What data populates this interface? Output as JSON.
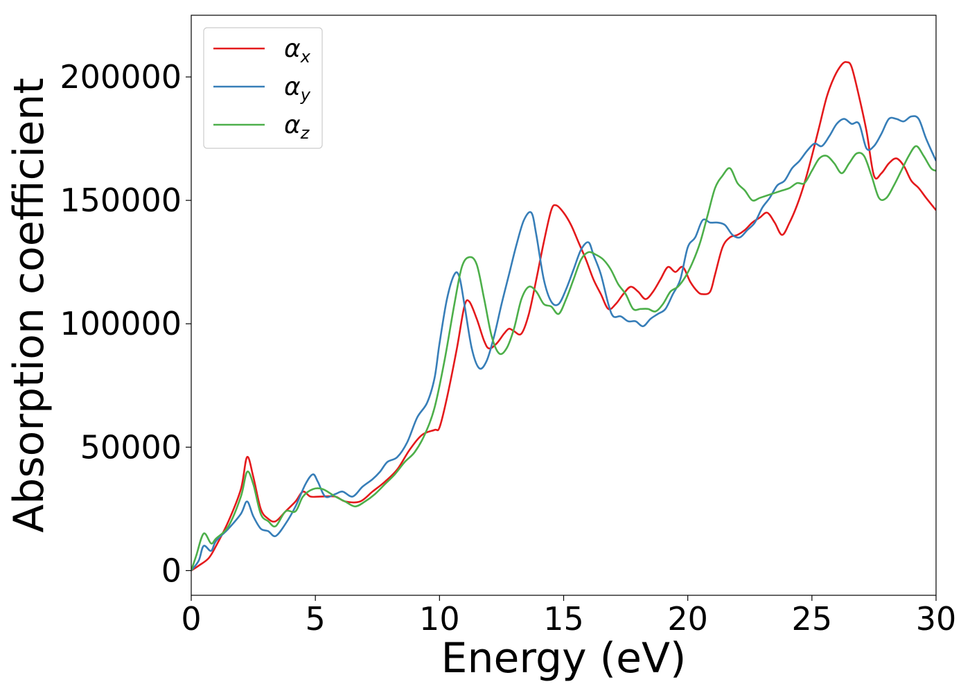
{
  "chart_data": {
    "type": "line",
    "title": "",
    "xlabel": "Energy (eV)",
    "ylabel": "Absorption coefficient",
    "xlim": [
      0,
      30
    ],
    "ylim": [
      -10000,
      225000
    ],
    "xticks": [
      0,
      5,
      10,
      15,
      20,
      25,
      30
    ],
    "xtick_labels": [
      "0",
      "5",
      "10",
      "15",
      "20",
      "25",
      "30"
    ],
    "yticks": [
      0,
      50000,
      100000,
      150000,
      200000
    ],
    "ytick_labels": [
      "0",
      "50000",
      "100000",
      "150000",
      "200000"
    ],
    "grid": false,
    "legend_position": "top-left",
    "series": [
      {
        "name": "α",
        "subscript": "x",
        "color": "#e41a1c",
        "x": [
          0,
          0.3,
          0.7,
          1.0,
          1.5,
          2.0,
          2.25,
          2.5,
          2.8,
          3.1,
          3.4,
          3.8,
          4.2,
          4.5,
          4.8,
          5.2,
          5.8,
          6.2,
          6.8,
          7.3,
          7.8,
          8.3,
          8.8,
          9.3,
          9.8,
          10.0,
          10.3,
          10.7,
          11.0,
          11.2,
          11.5,
          11.8,
          12.0,
          12.3,
          12.6,
          12.8,
          13.0,
          13.3,
          13.6,
          13.9,
          14.2,
          14.5,
          14.7,
          15.0,
          15.3,
          15.6,
          15.9,
          16.2,
          16.5,
          16.8,
          17.1,
          17.4,
          17.7,
          18.0,
          18.3,
          18.6,
          18.9,
          19.2,
          19.5,
          19.8,
          20.1,
          20.4,
          20.6,
          20.9,
          21.1,
          21.4,
          21.7,
          22.0,
          22.3,
          22.6,
          22.9,
          23.2,
          23.5,
          23.8,
          24.1,
          24.4,
          24.7,
          25.0,
          25.3,
          25.6,
          25.9,
          26.2,
          26.4,
          26.6,
          26.9,
          27.2,
          27.5,
          27.8,
          28.1,
          28.4,
          28.7,
          29.0,
          29.3,
          29.6,
          30.0
        ],
        "values": [
          0,
          2000,
          5000,
          10000,
          20000,
          33000,
          46000,
          38000,
          25000,
          21000,
          20000,
          24000,
          28000,
          32000,
          30000,
          30000,
          30000,
          28000,
          28000,
          32000,
          36000,
          41000,
          49000,
          55000,
          57000,
          58000,
          70000,
          90000,
          107000,
          109000,
          102000,
          93000,
          90000,
          92000,
          96000,
          98000,
          97000,
          96000,
          104000,
          118000,
          133000,
          146000,
          148000,
          145000,
          140000,
          133000,
          126000,
          118000,
          112000,
          106000,
          108000,
          112000,
          115000,
          113000,
          110000,
          113000,
          118000,
          123000,
          121000,
          123000,
          117000,
          113000,
          112000,
          113000,
          120000,
          131000,
          135000,
          136000,
          138000,
          141000,
          143000,
          145000,
          141000,
          136000,
          141000,
          148000,
          157000,
          168000,
          180000,
          192000,
          200000,
          205000,
          206000,
          204000,
          192000,
          178000,
          160000,
          161000,
          165000,
          167000,
          164000,
          158000,
          155000,
          151000,
          146000
        ]
      },
      {
        "name": "α",
        "subscript": "y",
        "color": "#377eb8",
        "x": [
          0,
          0.3,
          0.5,
          0.8,
          1.0,
          1.5,
          2.0,
          2.25,
          2.5,
          2.8,
          3.1,
          3.4,
          3.8,
          4.2,
          4.6,
          4.9,
          5.1,
          5.4,
          5.8,
          6.1,
          6.5,
          6.9,
          7.3,
          7.6,
          7.9,
          8.3,
          8.7,
          9.1,
          9.5,
          9.8,
          10.0,
          10.3,
          10.6,
          10.8,
          11.0,
          11.3,
          11.6,
          11.9,
          12.2,
          12.5,
          12.8,
          13.1,
          13.4,
          13.7,
          13.9,
          14.2,
          14.5,
          14.8,
          15.1,
          15.4,
          15.7,
          16.0,
          16.2,
          16.5,
          16.8,
          17.0,
          17.3,
          17.6,
          17.9,
          18.2,
          18.5,
          18.8,
          19.1,
          19.4,
          19.7,
          20.0,
          20.3,
          20.6,
          20.9,
          21.2,
          21.5,
          21.8,
          22.1,
          22.4,
          22.7,
          23.0,
          23.3,
          23.6,
          23.9,
          24.2,
          24.5,
          24.8,
          25.1,
          25.4,
          25.7,
          26.0,
          26.3,
          26.6,
          26.9,
          27.2,
          27.5,
          27.8,
          28.1,
          28.4,
          28.7,
          29.0,
          29.3,
          29.6,
          30.0
        ],
        "values": [
          0,
          4000,
          10000,
          8000,
          12000,
          17000,
          23000,
          28000,
          22000,
          17000,
          16000,
          14000,
          19000,
          26000,
          35000,
          39000,
          36000,
          30000,
          31000,
          32000,
          30000,
          34000,
          37000,
          40000,
          44000,
          46000,
          52000,
          62000,
          68000,
          78000,
          92000,
          110000,
          120000,
          119000,
          108000,
          90000,
          82000,
          85000,
          95000,
          108000,
          120000,
          132000,
          142000,
          145000,
          136000,
          118000,
          109000,
          108000,
          114000,
          122000,
          130000,
          133000,
          128000,
          120000,
          108000,
          103000,
          103000,
          101000,
          101000,
          99000,
          102000,
          104000,
          106000,
          112000,
          118000,
          131000,
          135000,
          142000,
          141000,
          141000,
          140000,
          136000,
          135000,
          138000,
          141000,
          147000,
          151000,
          156000,
          158000,
          163000,
          166000,
          170000,
          173000,
          172000,
          176000,
          181000,
          183000,
          181000,
          181000,
          171000,
          172000,
          177000,
          183000,
          183000,
          182000,
          184000,
          183000,
          175000,
          166000
        ]
      },
      {
        "name": "α",
        "subscript": "z",
        "color": "#4daf4a",
        "x": [
          0,
          0.2,
          0.5,
          0.8,
          1.0,
          1.5,
          2.0,
          2.25,
          2.5,
          2.8,
          3.1,
          3.4,
          3.8,
          4.2,
          4.5,
          4.9,
          5.3,
          5.8,
          6.2,
          6.6,
          7.0,
          7.4,
          7.8,
          8.2,
          8.6,
          9.0,
          9.4,
          9.8,
          10.2,
          10.6,
          10.9,
          11.2,
          11.5,
          11.8,
          12.1,
          12.4,
          12.7,
          13.0,
          13.3,
          13.6,
          13.9,
          14.2,
          14.5,
          14.8,
          15.1,
          15.4,
          15.7,
          16.0,
          16.3,
          16.6,
          16.9,
          17.2,
          17.5,
          17.8,
          18.1,
          18.4,
          18.7,
          19.0,
          19.3,
          19.6,
          19.9,
          20.2,
          20.5,
          20.8,
          21.1,
          21.4,
          21.7,
          22.0,
          22.3,
          22.6,
          22.9,
          23.2,
          23.5,
          23.8,
          24.1,
          24.4,
          24.7,
          25.0,
          25.3,
          25.6,
          25.9,
          26.2,
          26.5,
          26.8,
          27.1,
          27.4,
          27.7,
          28.0,
          28.3,
          28.6,
          28.9,
          29.2,
          29.5,
          29.8,
          30.0
        ],
        "values": [
          0,
          6000,
          15000,
          11000,
          13000,
          18000,
          30000,
          40000,
          35000,
          23000,
          20000,
          18000,
          24000,
          24000,
          30000,
          33000,
          33000,
          30000,
          28000,
          26000,
          28000,
          31000,
          35000,
          39000,
          44000,
          48000,
          55000,
          66000,
          85000,
          108000,
          123000,
          127000,
          124000,
          110000,
          95000,
          88000,
          90000,
          98000,
          110000,
          115000,
          113000,
          108000,
          107000,
          104000,
          110000,
          118000,
          126000,
          129000,
          128000,
          126000,
          122000,
          116000,
          112000,
          106000,
          106000,
          106000,
          105000,
          108000,
          113000,
          115000,
          119000,
          125000,
          133000,
          144000,
          155000,
          160000,
          163000,
          157000,
          154000,
          150000,
          151000,
          152000,
          153000,
          154000,
          155000,
          157000,
          157000,
          162000,
          167000,
          168000,
          165000,
          161000,
          165000,
          169000,
          168000,
          160000,
          151000,
          151000,
          156000,
          162000,
          168000,
          172000,
          168000,
          163000,
          162000
        ]
      }
    ]
  }
}
